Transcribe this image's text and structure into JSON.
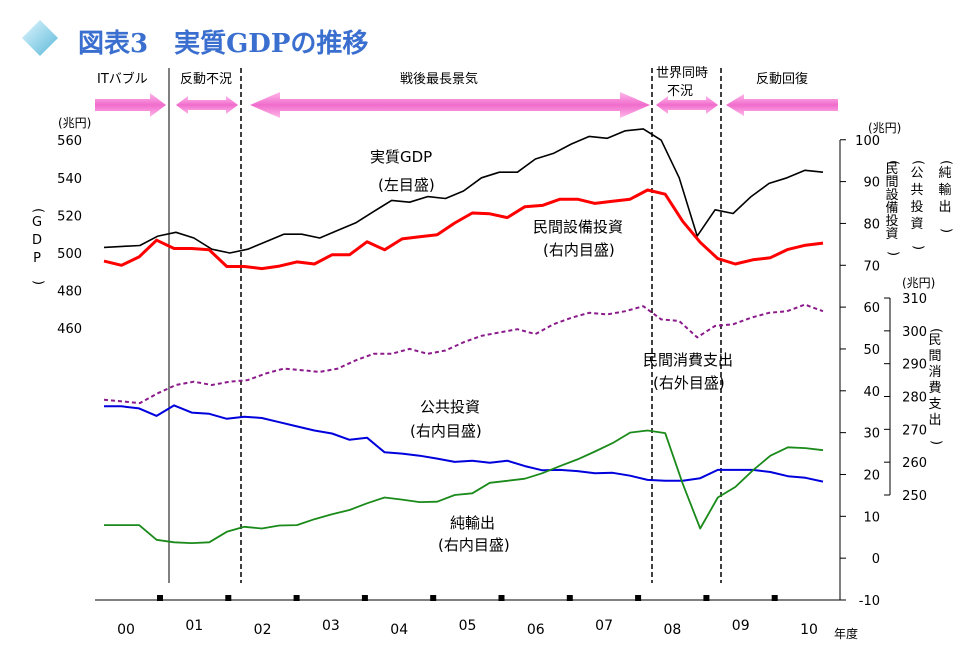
{
  "title": "図表3　実質GDPの推移",
  "colors": {
    "title": "#3b6fcf",
    "gdp": "#000000",
    "capex": "#ff0000",
    "consumption": "#8b1a8b",
    "public": "#0000dd",
    "netexports": "#1a8a1a",
    "arrow": "#f07ad0",
    "diamond": "#7fd0e8"
  },
  "periods": [
    {
      "label": "ITバブル"
    },
    {
      "label": "反動不況"
    },
    {
      "label": "戦後最長景気"
    },
    {
      "label": "世界同時不況",
      "lines": [
        "世界同時",
        "不況"
      ]
    },
    {
      "label": "反動回復"
    }
  ],
  "axis_units": {
    "left": "(兆円)",
    "right_inner": "(兆円)",
    "right_outer": "(兆円)",
    "x": "年度"
  },
  "axis_titles": {
    "left": "(GDP)",
    "right_inner_1": "(民間設備投資)",
    "right_inner_2": "(公共投資)",
    "right_inner_3": "(純輸出)",
    "right_outer": "(民間消費支出)"
  },
  "series_labels": {
    "gdp": [
      "実質GDP",
      "(左目盛)"
    ],
    "capex": [
      "民間設備投資",
      "(右内目盛)"
    ],
    "consumption": [
      "民間消費支出",
      "(右外目盛)"
    ],
    "public": [
      "公共投資",
      "(右内目盛)"
    ],
    "netexports": [
      "純輸出",
      "(右内目盛)"
    ]
  },
  "chart_data": {
    "type": "line",
    "title": "図表3　実質GDPの推移",
    "xlabel": "年度",
    "x_tick_labels": [
      "00",
      "01",
      "02",
      "03",
      "04",
      "05",
      "06",
      "07",
      "08",
      "09",
      "10"
    ],
    "quarters_per_year": 4,
    "axes": {
      "left": {
        "unit": "(兆円)",
        "label": "(GDP)",
        "ticks": [
          460,
          480,
          500,
          520,
          540,
          560
        ]
      },
      "right_inner": {
        "unit": "(兆円)",
        "labels": [
          "(民間設備投資)",
          "(公共投資)",
          "(純輸出)"
        ],
        "ticks": [
          -10,
          0,
          10,
          20,
          30,
          40,
          50,
          60,
          70,
          80,
          90,
          100
        ]
      },
      "right_outer": {
        "unit": "(兆円)",
        "label": "(民間消費支出)",
        "ticks": [
          250,
          260,
          270,
          280,
          290,
          300,
          310
        ]
      }
    },
    "series": [
      {
        "name": "実質GDP",
        "axis": "left",
        "values": [
          503,
          503.5,
          504,
          509,
          511,
          508,
          502,
          500,
          502,
          506,
          510,
          510,
          508,
          512,
          516,
          522,
          528,
          527,
          530,
          529,
          533,
          540,
          543,
          543,
          550,
          553,
          558,
          562,
          561,
          565,
          566,
          560,
          540,
          509,
          523,
          521,
          530,
          537,
          540,
          544,
          543
        ]
      },
      {
        "name": "民間設備投資",
        "axis": "right_inner",
        "values": [
          71,
          70,
          72,
          76,
          74,
          74,
          73.7,
          69.7,
          69.7,
          69.2,
          69.8,
          70.8,
          70.3,
          72.5,
          72.5,
          75.6,
          73.7,
          76.3,
          76.8,
          77.3,
          80.1,
          82.5,
          82.3,
          81.4,
          84,
          84.3,
          85.8,
          85.8,
          84.8,
          85.3,
          85.8,
          88,
          87,
          80.5,
          75.5,
          71.6,
          70.3,
          71.3,
          71.8,
          73.8,
          74.8,
          75.3
        ]
      },
      {
        "name": "民間消費支出",
        "axis": "right_outer",
        "values": [
          279,
          278.5,
          278,
          281,
          283.5,
          284.5,
          283.5,
          284.5,
          285,
          287,
          288.5,
          288,
          287.5,
          288.5,
          291,
          293,
          293,
          294.5,
          293,
          294,
          296.5,
          298.5,
          299.5,
          300.5,
          299,
          302,
          304,
          305.5,
          305,
          306,
          307.5,
          303.5,
          303,
          298,
          301.5,
          302,
          304,
          305.5,
          306,
          308,
          306
        ]
      },
      {
        "name": "公共投資",
        "axis": "right_inner",
        "values": [
          36.3,
          36.3,
          35.8,
          34,
          36.5,
          34.8,
          34.5,
          33.3,
          33.8,
          33.5,
          32.5,
          31.5,
          30.5,
          29.8,
          28.3,
          28.8,
          25.3,
          25,
          24.5,
          23.8,
          23,
          23.3,
          22.8,
          23.3,
          22,
          21,
          21.1,
          20.8,
          20.3,
          20.4,
          19.7,
          18.7,
          18.5,
          18.5,
          19.1,
          21.1,
          21.1,
          21.1,
          20.6,
          19.6,
          19.2,
          18.3
        ]
      },
      {
        "name": "純輸出",
        "axis": "right_inner",
        "values": [
          7.9,
          7.9,
          7.9,
          4.4,
          3.8,
          3.6,
          3.8,
          6.3,
          7.5,
          7.1,
          7.8,
          7.9,
          9.3,
          10.5,
          11.5,
          13.1,
          14.5,
          14,
          13.4,
          13.5,
          15.1,
          15.5,
          18,
          18.5,
          19,
          20.3,
          22,
          23.6,
          25.5,
          27.5,
          30,
          30.5,
          29.9,
          17.8,
          7.1,
          14.5,
          17,
          21,
          24.5,
          26.5,
          26.3,
          25.8
        ]
      }
    ]
  }
}
